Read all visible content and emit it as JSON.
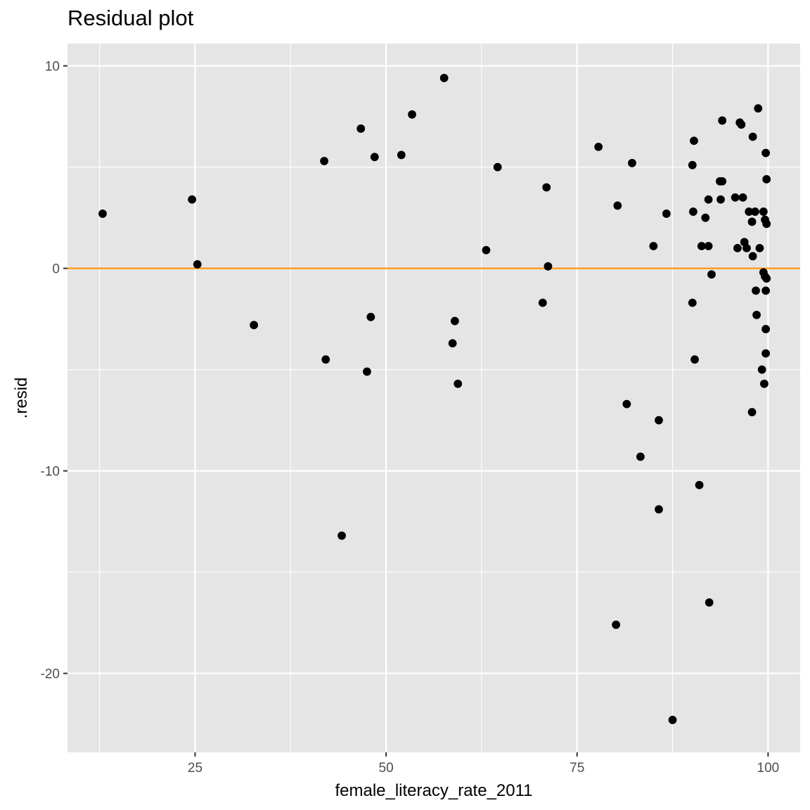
{
  "chart_data": {
    "type": "scatter",
    "title": "Residual plot",
    "xlabel": "female_literacy_rate_2011",
    "ylabel": ".resid",
    "xlim": [
      8.3,
      104.2
    ],
    "ylim": [
      -23.9,
      11.1
    ],
    "x_ticks": [
      25,
      50,
      75,
      100
    ],
    "x_tick_labels": [
      "25",
      "50",
      "75",
      "100"
    ],
    "x_minor_ticks": [
      12.5,
      37.5,
      62.5,
      87.5
    ],
    "y_ticks": [
      10,
      0,
      -10,
      -20
    ],
    "y_tick_labels": [
      "10",
      "0",
      "-10",
      "-20"
    ],
    "y_minor_ticks": [
      5,
      -5,
      -15
    ],
    "grid": true,
    "background_color": "#e5e5e5",
    "grid_color": "#ffffff",
    "point_color": "#000000",
    "reference_line": {
      "y": 0,
      "color": "#ff9a1a"
    },
    "points": [
      {
        "x": 12.9,
        "y": 2.7
      },
      {
        "x": 24.6,
        "y": 3.4
      },
      {
        "x": 25.3,
        "y": 0.2
      },
      {
        "x": 32.7,
        "y": -2.8
      },
      {
        "x": 41.9,
        "y": 5.3
      },
      {
        "x": 42.1,
        "y": -4.5
      },
      {
        "x": 44.2,
        "y": -13.2
      },
      {
        "x": 46.7,
        "y": 6.9
      },
      {
        "x": 47.5,
        "y": -5.1
      },
      {
        "x": 48.0,
        "y": -2.4
      },
      {
        "x": 48.5,
        "y": 5.5
      },
      {
        "x": 52.0,
        "y": 5.6
      },
      {
        "x": 53.4,
        "y": 7.6
      },
      {
        "x": 57.6,
        "y": 9.4
      },
      {
        "x": 58.7,
        "y": -3.7
      },
      {
        "x": 59.0,
        "y": -2.6
      },
      {
        "x": 59.4,
        "y": -5.7
      },
      {
        "x": 63.1,
        "y": 0.9
      },
      {
        "x": 64.6,
        "y": 5.0
      },
      {
        "x": 70.5,
        "y": -1.7
      },
      {
        "x": 71.0,
        "y": 4.0
      },
      {
        "x": 71.2,
        "y": 0.1
      },
      {
        "x": 77.8,
        "y": 6.0
      },
      {
        "x": 80.1,
        "y": -17.6
      },
      {
        "x": 80.3,
        "y": 3.1
      },
      {
        "x": 81.5,
        "y": -6.7
      },
      {
        "x": 82.2,
        "y": 5.2
      },
      {
        "x": 83.3,
        "y": -9.3
      },
      {
        "x": 85.0,
        "y": 1.1
      },
      {
        "x": 85.7,
        "y": -7.5
      },
      {
        "x": 85.7,
        "y": -11.9
      },
      {
        "x": 86.7,
        "y": 2.7
      },
      {
        "x": 87.5,
        "y": -22.3
      },
      {
        "x": 90.1,
        "y": 5.1
      },
      {
        "x": 90.1,
        "y": -1.7
      },
      {
        "x": 90.2,
        "y": 2.8
      },
      {
        "x": 90.3,
        "y": 6.3
      },
      {
        "x": 90.4,
        "y": -4.5
      },
      {
        "x": 91.0,
        "y": -10.7
      },
      {
        "x": 91.3,
        "y": 1.1
      },
      {
        "x": 91.8,
        "y": 2.5
      },
      {
        "x": 92.2,
        "y": 3.4
      },
      {
        "x": 92.2,
        "y": 1.1
      },
      {
        "x": 92.3,
        "y": -16.5
      },
      {
        "x": 92.6,
        "y": -0.3
      },
      {
        "x": 93.7,
        "y": 4.3
      },
      {
        "x": 93.8,
        "y": 3.4
      },
      {
        "x": 94.0,
        "y": 7.3
      },
      {
        "x": 94.0,
        "y": 4.3
      },
      {
        "x": 95.7,
        "y": 3.5
      },
      {
        "x": 96.0,
        "y": 1.0
      },
      {
        "x": 96.3,
        "y": 7.2
      },
      {
        "x": 96.5,
        "y": 7.1
      },
      {
        "x": 96.7,
        "y": 3.5
      },
      {
        "x": 96.9,
        "y": 1.3
      },
      {
        "x": 97.2,
        "y": 1.0
      },
      {
        "x": 97.5,
        "y": 2.8
      },
      {
        "x": 97.9,
        "y": 2.3
      },
      {
        "x": 97.9,
        "y": -7.1
      },
      {
        "x": 98.0,
        "y": 6.5
      },
      {
        "x": 98.0,
        "y": 0.6
      },
      {
        "x": 98.3,
        "y": 2.8
      },
      {
        "x": 98.4,
        "y": -1.1
      },
      {
        "x": 98.5,
        "y": -2.3
      },
      {
        "x": 98.7,
        "y": 7.9
      },
      {
        "x": 98.9,
        "y": 1.0
      },
      {
        "x": 99.2,
        "y": -5.0
      },
      {
        "x": 99.4,
        "y": 2.8
      },
      {
        "x": 99.4,
        "y": -0.2
      },
      {
        "x": 99.5,
        "y": -5.7
      },
      {
        "x": 99.6,
        "y": 2.4
      },
      {
        "x": 99.6,
        "y": -0.4
      },
      {
        "x": 99.7,
        "y": -4.2
      },
      {
        "x": 99.7,
        "y": -3.0
      },
      {
        "x": 99.7,
        "y": -1.1
      },
      {
        "x": 99.7,
        "y": 5.7
      },
      {
        "x": 99.8,
        "y": 2.2
      },
      {
        "x": 99.8,
        "y": 4.4
      },
      {
        "x": 99.8,
        "y": -0.5
      }
    ]
  }
}
